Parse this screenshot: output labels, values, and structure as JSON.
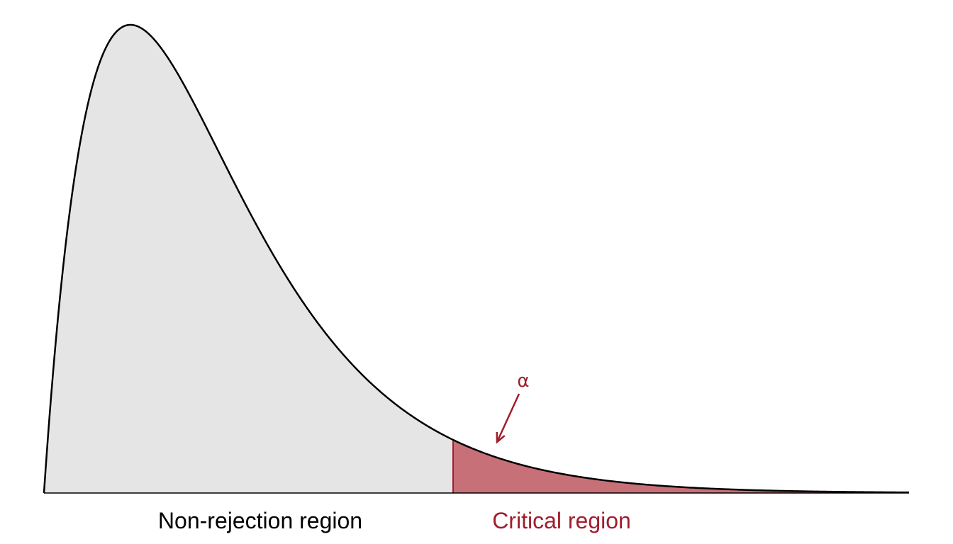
{
  "labels": {
    "non_rejection": "Non-rejection region",
    "critical": "Critical region",
    "alpha": "α"
  },
  "colors": {
    "curve": "#000000",
    "non_rejection_fill": "#e5e5e5",
    "critical_fill": "#c87078",
    "critical_stroke": "#a01e2d",
    "critical_text": "#a01e2d",
    "background": "#ffffff"
  }
}
